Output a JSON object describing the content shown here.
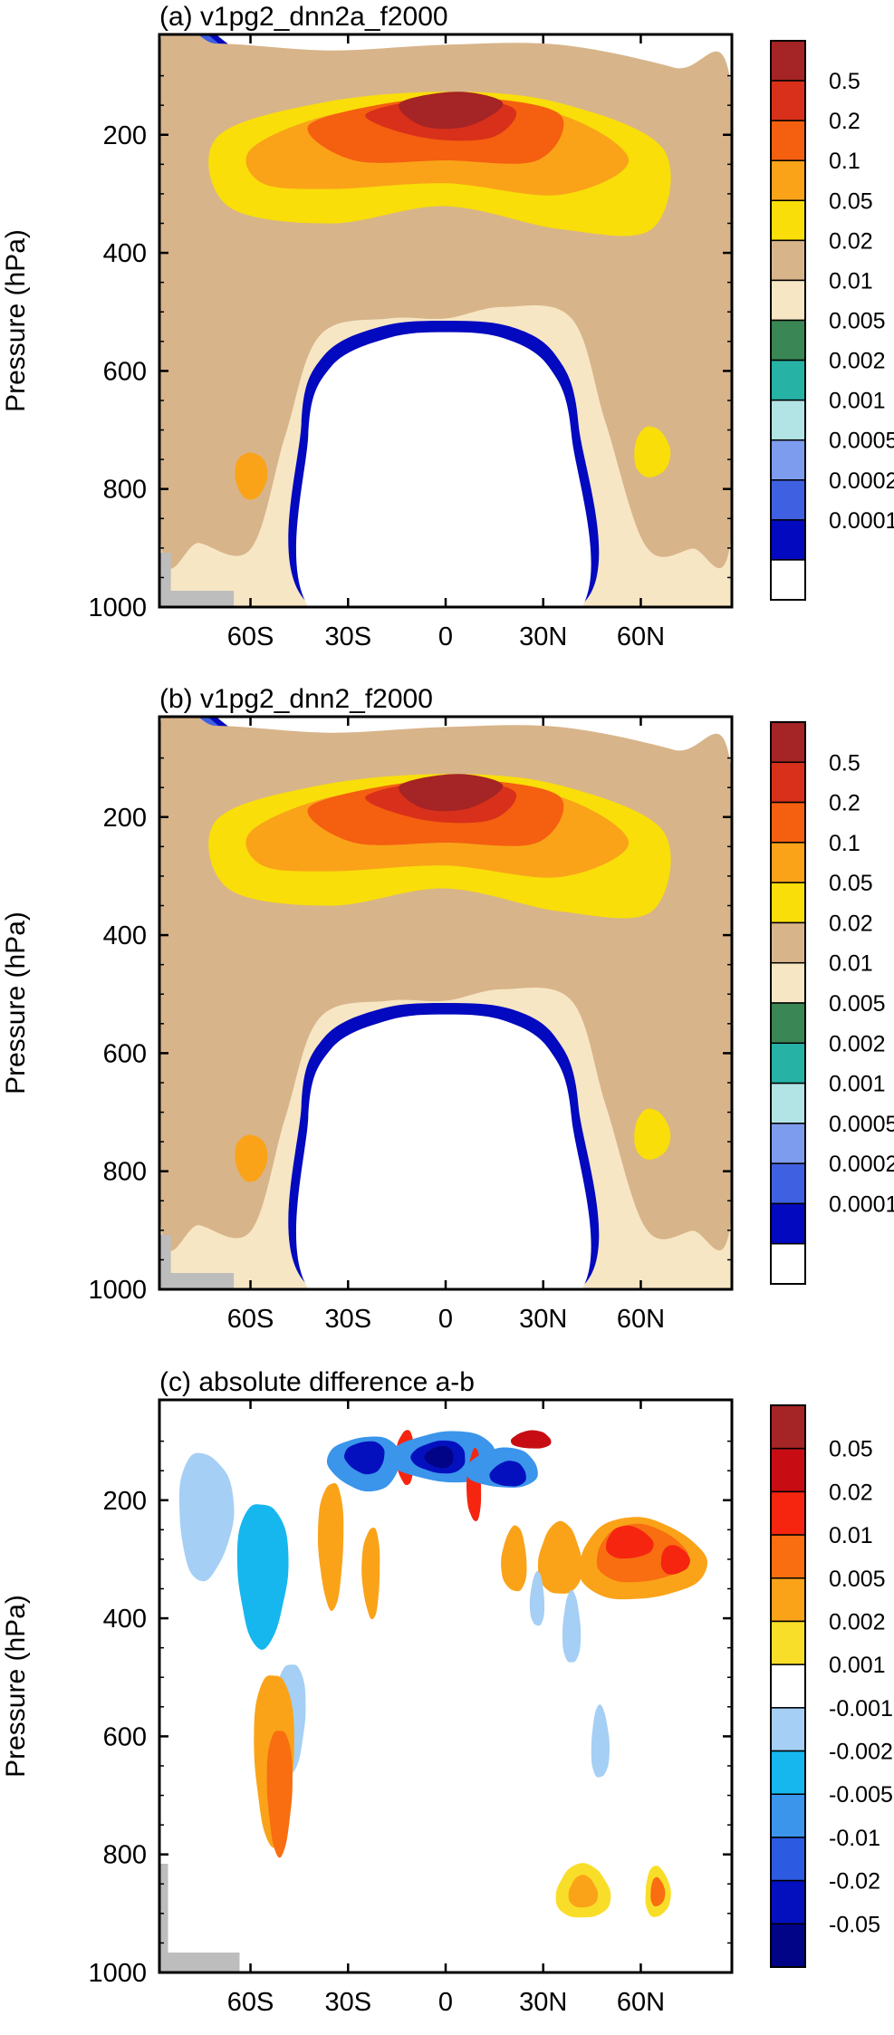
{
  "chart_data": [
    {
      "type": "heatmap",
      "title": "(a) v1pg2_dnn2a_f2000",
      "ylabel": "Pressure (hPa)",
      "xlabel": "",
      "x_ticks": [
        "60S",
        "30S",
        "0",
        "30N",
        "60N"
      ],
      "x_tick_values": [
        -60,
        -30,
        0,
        30,
        60
      ],
      "xlim": [
        -88,
        88
      ],
      "y_ticks": [
        "200",
        "400",
        "600",
        "800",
        "1000"
      ],
      "y_tick_values": [
        200,
        400,
        600,
        800,
        1000
      ],
      "ylim": [
        30,
        1000
      ],
      "y_reversed": true,
      "colorbar": {
        "labels": [
          "0.5",
          "0.2",
          "0.1",
          "0.05",
          "0.02",
          "0.01",
          "0.005",
          "0.002",
          "0.001",
          "0.0005",
          "0.0002",
          "0.0001"
        ],
        "colors": [
          "#A52425",
          "#D8301A",
          "#F55F10",
          "#FAA319",
          "#F9DE09",
          "#D8B48A",
          "#F6E6C4",
          "#3A8654",
          "#27B2A6",
          "#B2E4E5",
          "#7E9CED",
          "#3F60E1",
          "#0309BE",
          "#FFFFFF"
        ]
      }
    },
    {
      "type": "heatmap",
      "title": "(b) v1pg2_dnn2_f2000",
      "ylabel": "Pressure (hPa)",
      "xlabel": "",
      "x_ticks": [
        "60S",
        "30S",
        "0",
        "30N",
        "60N"
      ],
      "x_tick_values": [
        -60,
        -30,
        0,
        30,
        60
      ],
      "xlim": [
        -88,
        88
      ],
      "y_ticks": [
        "200",
        "400",
        "600",
        "800",
        "1000"
      ],
      "y_tick_values": [
        200,
        400,
        600,
        800,
        1000
      ],
      "ylim": [
        30,
        1000
      ],
      "y_reversed": true,
      "colorbar": {
        "labels": [
          "0.5",
          "0.2",
          "0.1",
          "0.05",
          "0.02",
          "0.01",
          "0.005",
          "0.002",
          "0.001",
          "0.0005",
          "0.0002",
          "0.0001"
        ],
        "colors": [
          "#A52425",
          "#D8301A",
          "#F55F10",
          "#FAA319",
          "#F9DE09",
          "#D8B48A",
          "#F6E6C4",
          "#3A8654",
          "#27B2A6",
          "#B2E4E5",
          "#7E9CED",
          "#3F60E1",
          "#0309BE",
          "#FFFFFF"
        ]
      }
    },
    {
      "type": "heatmap",
      "title": "(c) absolute difference a-b",
      "ylabel": "Pressure (hPa)",
      "xlabel": "",
      "x_ticks": [
        "60S",
        "30S",
        "0",
        "30N",
        "60N"
      ],
      "x_tick_values": [
        -60,
        -30,
        0,
        30,
        60
      ],
      "xlim": [
        -88,
        88
      ],
      "y_ticks": [
        "200",
        "400",
        "600",
        "800",
        "1000"
      ],
      "y_tick_values": [
        200,
        400,
        600,
        800,
        1000
      ],
      "ylim": [
        30,
        1000
      ],
      "y_reversed": true,
      "colorbar": {
        "labels": [
          "0.05",
          "0.02",
          "0.01",
          "0.005",
          "0.002",
          "0.001",
          "-0.001",
          "-0.002",
          "-0.005",
          "-0.01",
          "-0.02",
          "-0.05"
        ],
        "colors": [
          "#A52425",
          "#C70D13",
          "#F5250F",
          "#F86E11",
          "#FAA319",
          "#F9DE29",
          "#FFFFFF",
          "#A5CFF4",
          "#16B7EE",
          "#3A95EB",
          "#2C5AE1",
          "#0410BE",
          "#010487"
        ]
      }
    }
  ]
}
